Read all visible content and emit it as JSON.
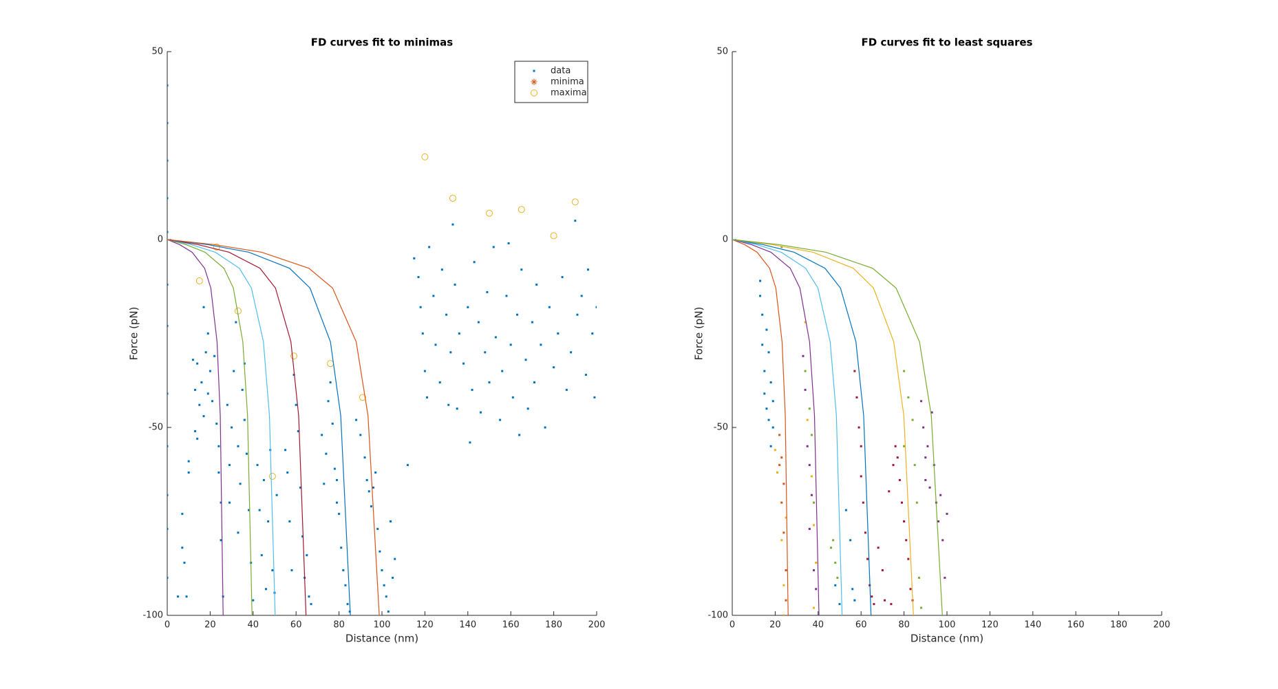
{
  "chart_data": [
    {
      "type": "scatter",
      "title": "FD curves fit to minimas",
      "xlabel": "Distance (nm)",
      "ylabel": "Force (pN)",
      "xlim": [
        0,
        200
      ],
      "ylim": [
        -100,
        50
      ],
      "xticks": [
        0,
        20,
        40,
        60,
        80,
        100,
        120,
        140,
        160,
        180,
        200
      ],
      "yticks": [
        -100,
        -50,
        0,
        50
      ],
      "legend": "upper right",
      "series": [
        {
          "name": "data",
          "style": "point",
          "color": "#0072bd",
          "x": [
            0,
            0,
            0,
            0,
            0,
            0,
            0,
            0,
            0,
            0,
            0,
            0,
            5,
            7,
            7,
            8,
            9,
            10,
            10,
            12,
            13,
            13,
            14,
            15,
            16,
            17,
            18,
            19,
            20,
            21,
            22,
            23,
            24,
            24,
            25,
            25,
            26,
            14,
            17,
            19,
            28,
            29,
            30,
            31,
            32,
            33,
            34,
            35,
            36,
            37,
            38,
            39,
            40,
            29,
            33,
            36,
            42,
            43,
            44,
            45,
            46,
            47,
            48,
            49,
            50,
            51,
            55,
            56,
            57,
            58,
            60,
            61,
            62,
            63,
            64,
            66,
            67,
            59,
            65,
            72,
            73,
            74,
            76,
            77,
            78,
            79,
            80,
            81,
            82,
            83,
            84,
            85,
            75,
            79,
            88,
            90,
            92,
            93,
            94,
            95,
            96,
            98,
            99,
            100,
            101,
            102,
            103,
            104,
            105,
            106,
            97,
            112,
            115,
            117,
            118,
            119,
            120,
            121,
            122,
            124,
            125,
            127,
            128,
            130,
            131,
            132,
            133,
            134,
            135,
            136,
            138,
            140,
            141,
            142,
            143,
            145,
            146,
            148,
            149,
            150,
            152,
            153,
            155,
            156,
            158,
            159,
            160,
            161,
            163,
            164,
            165,
            167,
            168,
            170,
            171,
            172,
            174,
            176,
            178,
            180,
            182,
            184,
            186,
            188,
            190,
            191,
            193,
            195,
            196,
            198,
            199,
            200
          ],
          "y": [
            41,
            31,
            21,
            11,
            2,
            -12,
            -23,
            -41,
            -55,
            -68,
            -77,
            -90,
            -95,
            -73,
            -82,
            -86,
            -95,
            -62,
            -59,
            -32,
            -40,
            -51,
            -33,
            -44,
            -38,
            -47,
            -30,
            -41,
            -35,
            -43,
            -31,
            -49,
            -55,
            -62,
            -70,
            -80,
            -95,
            -53,
            -18,
            -25,
            -44,
            -60,
            -50,
            -35,
            -22,
            -55,
            -65,
            -40,
            -48,
            -57,
            -72,
            -86,
            -96,
            -70,
            -78,
            -33,
            -60,
            -72,
            -84,
            -64,
            -93,
            -75,
            -56,
            -88,
            -94,
            -68,
            -56,
            -62,
            -75,
            -88,
            -44,
            -51,
            -66,
            -79,
            -90,
            -95,
            -97,
            -36,
            -84,
            -52,
            -65,
            -57,
            -38,
            -49,
            -61,
            -70,
            -73,
            -82,
            -88,
            -92,
            -97,
            -99,
            -43,
            -64,
            -48,
            -52,
            -58,
            -64,
            -67,
            -71,
            -66,
            -77,
            -83,
            -88,
            -92,
            -95,
            -99,
            -75,
            -90,
            -85,
            -62,
            -60,
            -5,
            -10,
            -18,
            -25,
            -35,
            -42,
            -2,
            -15,
            -28,
            -38,
            -8,
            -20,
            -44,
            -30,
            4,
            -12,
            -45,
            -25,
            -33,
            -18,
            -54,
            -40,
            -6,
            -22,
            -46,
            -30,
            -14,
            -38,
            -2,
            -26,
            -48,
            -35,
            -15,
            -1,
            -28,
            -42,
            -20,
            -52,
            -8,
            -32,
            -45,
            -22,
            -38,
            -12,
            -28,
            -50,
            -18,
            -34,
            -25,
            -10,
            -40,
            -30,
            5,
            -20,
            -15,
            -36,
            -8,
            -25,
            -42,
            -18
          ]
        },
        {
          "name": "minima",
          "style": "asterisk",
          "color": "#d95319",
          "x": [],
          "y": []
        },
        {
          "name": "maxima",
          "style": "circle",
          "color": "#edb120",
          "x": [
            23,
            15,
            33,
            59,
            76,
            91,
            49,
            120,
            133,
            150,
            165,
            180,
            190
          ],
          "y": [
            -2,
            -11,
            -19,
            -31,
            -33,
            -42,
            -63,
            22,
            11,
            7,
            8,
            1,
            10
          ]
        },
        {
          "style": "line",
          "color": "#7e2f8e",
          "x": [
            0,
            5.8,
            11.6,
            17.4,
            20.3,
            23.2,
            24.7,
            26.1
          ],
          "y": [
            0,
            -1.36,
            -3.38,
            -7.65,
            -12.91,
            -27.2,
            -46.84,
            -102.6
          ]
        },
        {
          "style": "line",
          "color": "#77ac30",
          "x": [
            0,
            8.8,
            17.6,
            26.4,
            30.8,
            35.2,
            37.4,
            39.6
          ],
          "y": [
            0,
            -1.36,
            -3.38,
            -7.65,
            -12.91,
            -27.2,
            -46.84,
            -102.6
          ]
        },
        {
          "style": "line",
          "color": "#4dbeee",
          "x": [
            0,
            11.2,
            22.4,
            33.6,
            39.2,
            44.8,
            47.6,
            50.4
          ],
          "y": [
            0,
            -1.36,
            -3.38,
            -7.65,
            -12.91,
            -27.2,
            -46.84,
            -102.6
          ]
        },
        {
          "style": "line",
          "color": "#a2142f",
          "x": [
            0,
            14.4,
            28.8,
            43.2,
            50.4,
            57.6,
            61.2,
            64.8
          ],
          "y": [
            0,
            -1.36,
            -3.38,
            -7.65,
            -12.91,
            -27.2,
            -46.84,
            -102.6
          ]
        },
        {
          "style": "line",
          "color": "#0072bd",
          "x": [
            0,
            19,
            38,
            57,
            66.5,
            76,
            80.8,
            85.5
          ],
          "y": [
            0,
            -1.36,
            -3.38,
            -7.65,
            -12.91,
            -27.2,
            -46.84,
            -102.6
          ]
        },
        {
          "style": "line",
          "color": "#d95319",
          "x": [
            0,
            22,
            44,
            66,
            77,
            88,
            93.5,
            99
          ],
          "y": [
            0,
            -1.36,
            -3.38,
            -7.65,
            -12.91,
            -27.2,
            -46.84,
            -102.6
          ]
        }
      ]
    },
    {
      "type": "scatter",
      "title": "FD curves fit to least squares",
      "xlabel": "Distance (nm)",
      "ylabel": "Force (pN)",
      "xlim": [
        0,
        200
      ],
      "ylim": [
        -100,
        50
      ],
      "xticks": [
        0,
        20,
        40,
        60,
        80,
        100,
        120,
        140,
        160,
        180,
        200
      ],
      "yticks": [
        -100,
        -50,
        0,
        50
      ],
      "series": [
        {
          "style": "point",
          "color": "#0072bd",
          "x": [
            13,
            14,
            14,
            15,
            15,
            16,
            16,
            17,
            17,
            13,
            18,
            18,
            19,
            19
          ],
          "y": [
            -11,
            -20,
            -28,
            -35,
            -41,
            -24,
            -45,
            -30,
            -48,
            -15,
            -38,
            -55,
            -50,
            -43
          ]
        },
        {
          "style": "point",
          "color": "#d95319",
          "x": [
            22,
            23,
            24,
            24,
            25,
            25,
            22,
            23
          ],
          "y": [
            -52,
            -58,
            -65,
            -78,
            -88,
            -96,
            -60,
            -70
          ]
        },
        {
          "style": "point",
          "color": "#edb120",
          "x": [
            20,
            21,
            23,
            24,
            25,
            24,
            34,
            35,
            37,
            38,
            39,
            38
          ],
          "y": [
            -56,
            -62,
            -80,
            -92,
            -74,
            -100,
            -22,
            -48,
            -63,
            -76,
            -86,
            -98
          ]
        },
        {
          "style": "point",
          "color": "#7e2f8e",
          "x": [
            33,
            34,
            35,
            36,
            37,
            38,
            39,
            36,
            88,
            89,
            90,
            91,
            92,
            93,
            94,
            95,
            96,
            97,
            98,
            99,
            100,
            90
          ],
          "y": [
            -31,
            -40,
            -55,
            -60,
            -68,
            -88,
            -93,
            -77,
            -43,
            -50,
            -58,
            -55,
            -66,
            -46,
            -60,
            -70,
            -75,
            -68,
            -80,
            -90,
            -73,
            -64
          ]
        },
        {
          "style": "point",
          "color": "#77ac30",
          "x": [
            23,
            34,
            36,
            37,
            38,
            46,
            47,
            48,
            49,
            80,
            82,
            84,
            85,
            86,
            87,
            88,
            80
          ],
          "y": [
            -2,
            -35,
            -45,
            -52,
            -70,
            -82,
            -80,
            -86,
            -90,
            -35,
            -42,
            -48,
            -60,
            -70,
            -90,
            -98,
            -55
          ]
        },
        {
          "style": "point",
          "color": "#a2142f",
          "x": [
            57,
            58,
            59,
            60,
            60,
            61,
            62,
            63,
            64,
            65,
            66,
            68,
            70,
            71,
            73,
            75,
            76,
            77,
            78,
            79,
            80,
            81,
            82,
            83,
            84,
            74
          ],
          "y": [
            -35,
            -42,
            -50,
            -55,
            -63,
            -70,
            -78,
            -85,
            -92,
            -95,
            -97,
            -82,
            -88,
            -96,
            -67,
            -60,
            -55,
            -58,
            -64,
            -70,
            -75,
            -80,
            -85,
            -93,
            -96,
            -97
          ]
        },
        {
          "style": "point",
          "color": "#0072bd",
          "x": [
            48,
            50,
            53,
            55,
            56,
            57
          ],
          "y": [
            -92,
            -97,
            -72,
            -80,
            -93,
            -96
          ]
        },
        {
          "style": "line",
          "color": "#d95319",
          "x": [
            0,
            5.8,
            11.6,
            17.4,
            20.3,
            23.2,
            24.7,
            26.1
          ],
          "y": [
            0,
            -1.36,
            -3.38,
            -7.65,
            -12.91,
            -27.2,
            -46.84,
            -102.6
          ]
        },
        {
          "style": "line",
          "color": "#7e2f8e",
          "x": [
            0,
            9,
            18,
            27,
            31.5,
            36,
            38.3,
            40.5
          ],
          "y": [
            0,
            -1.36,
            -3.38,
            -7.65,
            -12.91,
            -27.2,
            -46.84,
            -102.6
          ]
        },
        {
          "style": "line",
          "color": "#4dbeee",
          "x": [
            0,
            11.4,
            22.8,
            34.2,
            39.9,
            45.6,
            48.5,
            51.3
          ],
          "y": [
            0,
            -1.36,
            -3.38,
            -7.65,
            -12.91,
            -27.2,
            -46.84,
            -102.6
          ]
        },
        {
          "style": "line",
          "color": "#0072bd",
          "x": [
            0,
            14.4,
            28.8,
            43.2,
            50.4,
            57.6,
            61.2,
            64.8
          ],
          "y": [
            0,
            -1.36,
            -3.38,
            -7.65,
            -12.91,
            -27.2,
            -46.84,
            -102.6
          ]
        },
        {
          "style": "line",
          "color": "#edb120",
          "x": [
            0,
            18.8,
            37.6,
            56.4,
            65.8,
            75.2,
            79.9,
            84.6
          ],
          "y": [
            0,
            -1.36,
            -3.38,
            -7.65,
            -12.91,
            -27.2,
            -46.84,
            -102.6
          ]
        },
        {
          "style": "line",
          "color": "#77ac30",
          "x": [
            0,
            21.8,
            43.6,
            65.4,
            76.3,
            87.2,
            92.7,
            98.1
          ],
          "y": [
            0,
            -1.36,
            -3.38,
            -7.65,
            -12.91,
            -27.2,
            -46.84,
            -102.6
          ]
        }
      ]
    }
  ]
}
